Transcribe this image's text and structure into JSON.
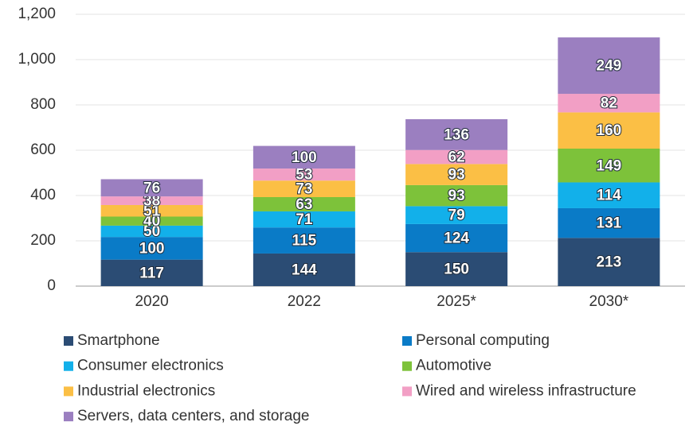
{
  "chart_data": {
    "type": "stacked_bar",
    "categories": [
      "2020",
      "2022",
      "2025*",
      "2030*"
    ],
    "series": [
      {
        "name": "Smartphone",
        "color": "#2b4c74",
        "values": [
          117,
          144,
          150,
          213
        ]
      },
      {
        "name": "Personal computing",
        "color": "#0a7bc7",
        "values": [
          100,
          115,
          124,
          131
        ]
      },
      {
        "name": "Consumer electronics",
        "color": "#12b0ea",
        "values": [
          50,
          71,
          79,
          114
        ]
      },
      {
        "name": "Automotive",
        "color": "#7dc23a",
        "values": [
          40,
          63,
          93,
          149
        ]
      },
      {
        "name": "Industrial electronics",
        "color": "#fbbf45",
        "values": [
          51,
          73,
          93,
          160
        ]
      },
      {
        "name": "Wired and wireless infrastructure",
        "color": "#f29fc5",
        "values": [
          38,
          53,
          62,
          82
        ]
      },
      {
        "name": "Servers, data centers, and storage",
        "color": "#9b7fc0",
        "values": [
          76,
          100,
          136,
          249
        ]
      }
    ],
    "ylim": [
      0,
      1200
    ],
    "yticks": [
      0,
      200,
      400,
      600,
      800,
      {
        "value": 1000,
        "label": "1,000"
      },
      {
        "value": 1200,
        "label": "1,200"
      }
    ],
    "grid": true
  }
}
